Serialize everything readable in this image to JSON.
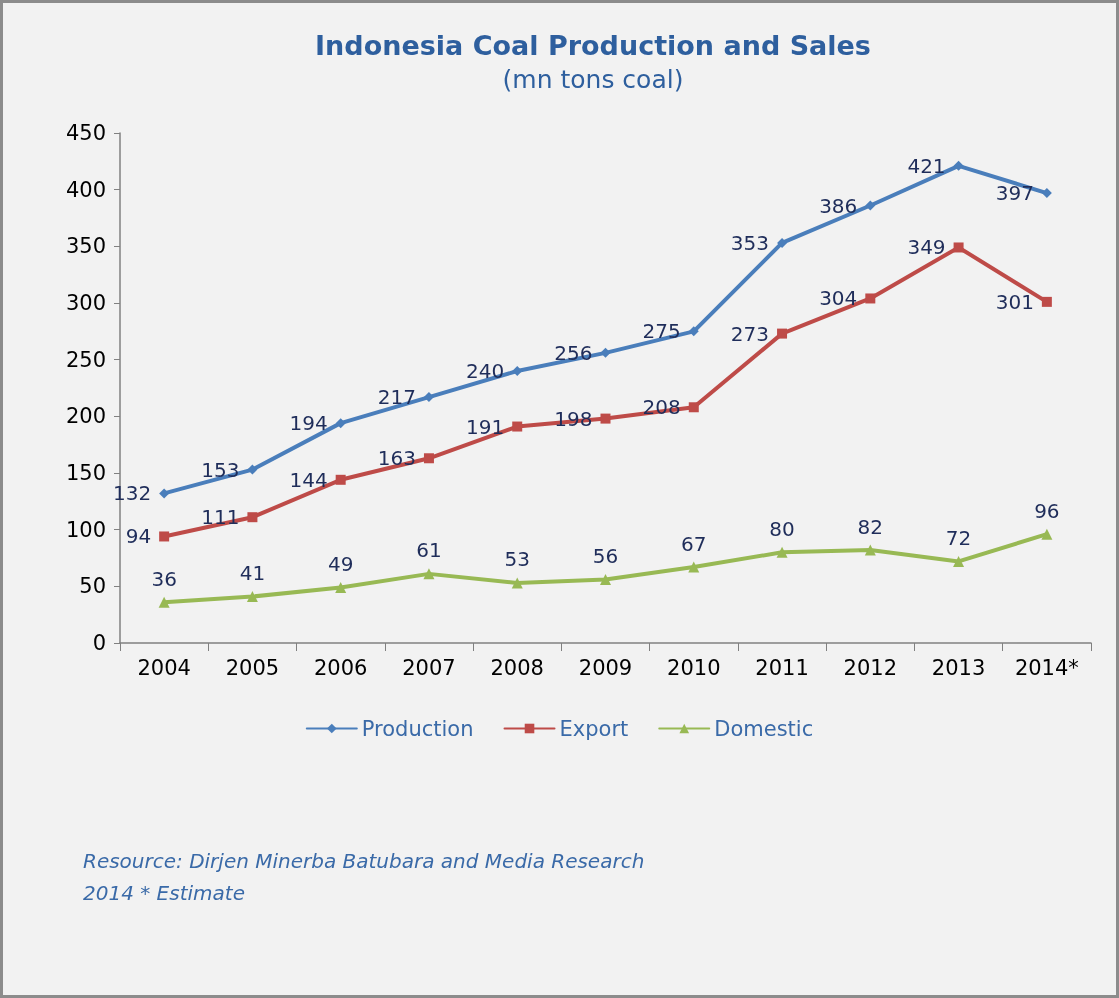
{
  "chart_data": {
    "type": "line",
    "title": "Indonesia Coal Production and Sales",
    "subtitle": "(mn tons coal)",
    "categories": [
      "2004",
      "2005",
      "2006",
      "2007",
      "2008",
      "2009",
      "2010",
      "2011",
      "2012",
      "2013",
      "2014*"
    ],
    "series": [
      {
        "name": "Production",
        "color": "#4a7ebb",
        "marker": "diamond",
        "values": [
          132,
          153,
          194,
          217,
          240,
          256,
          275,
          353,
          386,
          421,
          397
        ]
      },
      {
        "name": "Export",
        "color": "#be4b48",
        "marker": "square",
        "values": [
          94,
          111,
          144,
          163,
          191,
          198,
          208,
          273,
          304,
          349,
          301
        ]
      },
      {
        "name": "Domestic",
        "color": "#98b954",
        "marker": "triangle",
        "values": [
          36,
          41,
          49,
          61,
          53,
          56,
          67,
          80,
          82,
          72,
          96
        ]
      }
    ],
    "ylim": [
      0,
      450
    ],
    "yticks": [
      0,
      50,
      100,
      150,
      200,
      250,
      300,
      350,
      400,
      450
    ],
    "data_labels": true,
    "legend": "bottom",
    "line_style": "solid",
    "annotations": [
      "Resource: Dirjen Minerba Batubara and Media Research",
      "2014 * Estimate"
    ]
  }
}
